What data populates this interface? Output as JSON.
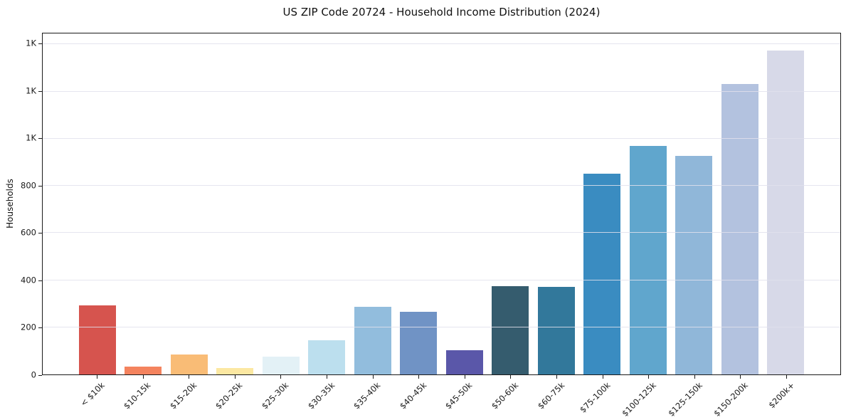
{
  "title": "US ZIP Code 20724 - Household Income Distribution (2024)",
  "chart_data": {
    "type": "bar",
    "title": "US ZIP Code 20724 - Household Income Distribution (2024)",
    "xlabel": "",
    "ylabel": "Households",
    "categories": [
      "< $10k",
      "$10-15k",
      "$15-20k",
      "$20-25k",
      "$25-30k",
      "$30-35k",
      "$35-40k",
      "$40-45k",
      "$45-50k",
      "$50-60k",
      "$60-75k",
      "$75-100k",
      "$100-125k",
      "$125-150k",
      "$150-200k",
      "$200k+"
    ],
    "values": [
      293,
      33,
      86,
      27,
      75,
      144,
      288,
      267,
      102,
      375,
      372,
      852,
      968,
      928,
      1231,
      1375
    ],
    "bar_colors": [
      "#d6544e",
      "#f4835e",
      "#f9bc76",
      "#fce8a2",
      "#e3f1f6",
      "#bcdfee",
      "#92bddd",
      "#7093c5",
      "#5a57a9",
      "#355c6e",
      "#32789b",
      "#3a8cc1",
      "#60a6cd",
      "#90b7d9",
      "#b3c2df",
      "#d7d9e8"
    ],
    "ylim": [
      0,
      1446
    ],
    "yticks": [
      0,
      200,
      400,
      600,
      800,
      1000,
      1200,
      1400
    ],
    "ytick_labels": [
      "0",
      "200",
      "400",
      "600",
      "800",
      "1K",
      "1K",
      "1K"
    ],
    "grid": "horizontal",
    "gridline_color": "#ebebf1",
    "background": "#ffffff",
    "spine_color": "#1a1a1a",
    "legend": "none",
    "bar_width_fraction": 0.8,
    "x_tick_rotation_deg": 45
  }
}
